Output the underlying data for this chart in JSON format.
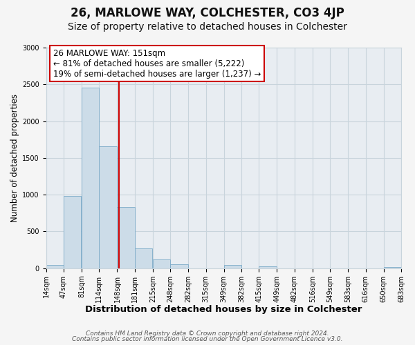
{
  "title": "26, MARLOWE WAY, COLCHESTER, CO3 4JP",
  "subtitle": "Size of property relative to detached houses in Colchester",
  "xlabel": "Distribution of detached houses by size in Colchester",
  "ylabel": "Number of detached properties",
  "bar_left_edges": [
    14,
    47,
    81,
    114,
    148,
    181,
    215,
    248,
    282,
    315,
    349,
    382,
    415,
    449,
    482,
    516,
    549,
    583,
    616,
    650
  ],
  "bar_heights": [
    40,
    980,
    2460,
    1660,
    830,
    270,
    115,
    50,
    0,
    0,
    40,
    0,
    30,
    0,
    0,
    0,
    0,
    0,
    0,
    15
  ],
  "bin_width": 33,
  "tick_labels": [
    "14sqm",
    "47sqm",
    "81sqm",
    "114sqm",
    "148sqm",
    "181sqm",
    "215sqm",
    "248sqm",
    "282sqm",
    "315sqm",
    "349sqm",
    "382sqm",
    "415sqm",
    "449sqm",
    "482sqm",
    "516sqm",
    "549sqm",
    "583sqm",
    "616sqm",
    "650sqm",
    "683sqm"
  ],
  "bar_color": "#ccdce8",
  "bar_edge_color": "#7baac8",
  "vline_x": 151,
  "vline_color": "#cc0000",
  "annotation_line1": "26 MARLOWE WAY: 151sqm",
  "annotation_line2": "← 81% of detached houses are smaller (5,222)",
  "annotation_line3": "19% of semi-detached houses are larger (1,237) →",
  "ylim": [
    0,
    3000
  ],
  "yticks": [
    0,
    500,
    1000,
    1500,
    2000,
    2500,
    3000
  ],
  "background_color": "#f5f5f5",
  "plot_background_color": "#e8edf2",
  "grid_color": "#c8d4dc",
  "footer_line1": "Contains HM Land Registry data © Crown copyright and database right 2024.",
  "footer_line2": "Contains public sector information licensed under the Open Government Licence v3.0.",
  "title_fontsize": 12,
  "subtitle_fontsize": 10,
  "xlabel_fontsize": 9.5,
  "ylabel_fontsize": 8.5,
  "tick_fontsize": 7,
  "annotation_fontsize": 8.5,
  "footer_fontsize": 6.5
}
